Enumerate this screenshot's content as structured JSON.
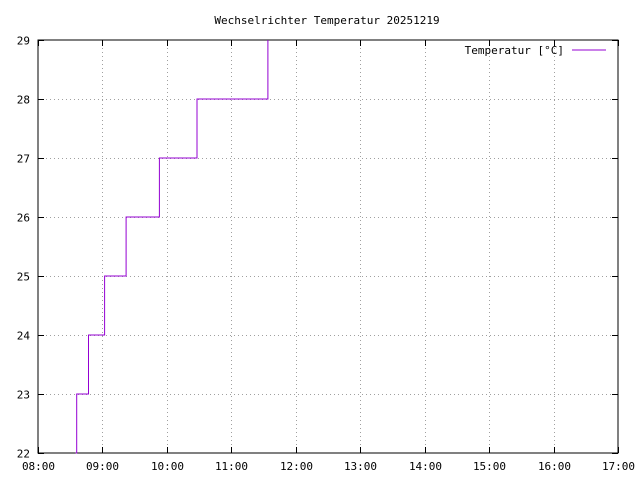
{
  "chart_data": {
    "type": "line",
    "title": "Wechselrichter Temperatur 20251219",
    "xlabel": "",
    "ylabel": "",
    "x_ticks": [
      "08:00",
      "09:00",
      "10:00",
      "11:00",
      "12:00",
      "13:00",
      "14:00",
      "15:00",
      "16:00",
      "17:00"
    ],
    "y_ticks": [
      "22",
      "23",
      "24",
      "25",
      "26",
      "27",
      "28",
      "29"
    ],
    "xlim": [
      "08:00",
      "17:00"
    ],
    "ylim": [
      22,
      29
    ],
    "grid": true,
    "legend_position": "top-right",
    "series": [
      {
        "name": "Temperatur [°C]",
        "color": "#9400d3",
        "step": true,
        "points": [
          {
            "x": "08:35",
            "y": 22
          },
          {
            "x": "08:36",
            "y": 23
          },
          {
            "x": "08:46",
            "y": 23
          },
          {
            "x": "08:47",
            "y": 24
          },
          {
            "x": "09:01",
            "y": 24
          },
          {
            "x": "09:02",
            "y": 25
          },
          {
            "x": "09:21",
            "y": 25
          },
          {
            "x": "09:22",
            "y": 26
          },
          {
            "x": "09:52",
            "y": 26
          },
          {
            "x": "09:53",
            "y": 27
          },
          {
            "x": "10:27",
            "y": 27
          },
          {
            "x": "10:28",
            "y": 28
          },
          {
            "x": "11:33",
            "y": 28
          },
          {
            "x": "11:34",
            "y": 29
          }
        ]
      }
    ]
  }
}
